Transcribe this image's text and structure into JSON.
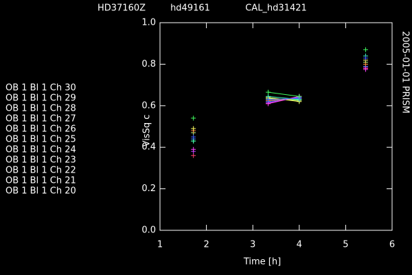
{
  "chart_data": {
    "type": "line",
    "titles": [
      "HD37160Z",
      "hd49161",
      "CAL_hd31421"
    ],
    "side_label": "2005-01-01 PRISM",
    "x_label": "Time [h]",
    "y_label": "VisSq c",
    "x": [
      1.72,
      3.33,
      4.0,
      5.43
    ],
    "xlim": [
      1,
      6
    ],
    "xticks": [
      1,
      2,
      3,
      4,
      5,
      6
    ],
    "ylim": [
      0,
      1
    ],
    "yticks": [
      {
        "value": 0,
        "label": "0.0"
      },
      0.2,
      0.4,
      0.6,
      0.8,
      {
        "value": 1,
        "label": "1.0"
      }
    ],
    "series": [
      {
        "name": "OB 1 Bl 1 Ch 30",
        "color": "#ff4070",
        "values": [
          0.36,
          0.61,
          0.645,
          0.78
        ]
      },
      {
        "name": "OB 1 Bl 1 Ch 29",
        "color": "#b040ff",
        "values": [
          0.38,
          0.615,
          0.64,
          0.785
        ]
      },
      {
        "name": "OB 1 Bl 1 Ch 28",
        "color": "#4080ff",
        "values": [
          0.44,
          0.62,
          0.64,
          0.79
        ]
      },
      {
        "name": "OB 1 Bl 1 Ch 27",
        "color": "#60ff40",
        "values": [
          0.43,
          0.63,
          0.63,
          0.8
        ]
      },
      {
        "name": "OB 1 Bl 1 Ch 26",
        "color": "#c0ff80",
        "values": [
          0.47,
          0.635,
          0.625,
          0.81
        ]
      },
      {
        "name": "OB 1 Bl 1 Ch 25",
        "color": "#ff8040",
        "values": [
          0.48,
          0.625,
          0.635,
          0.8
        ]
      },
      {
        "name": "OB 1 Bl 1 Ch 24",
        "color": "#ffff60",
        "values": [
          0.49,
          0.64,
          0.62,
          0.82
        ]
      },
      {
        "name": "OB 1 Bl 1 Ch 23",
        "color": "#ff40ff",
        "values": [
          0.39,
          0.61,
          0.645,
          0.775
        ]
      },
      {
        "name": "OB 1 Bl 1 Ch 22",
        "color": "#40ffc0",
        "values": [
          0.43,
          0.645,
          0.63,
          0.84
        ]
      },
      {
        "name": "OB 1 Bl 1 Ch 21",
        "color": "#4060ff",
        "values": [
          0.45,
          0.63,
          0.635,
          0.83
        ]
      },
      {
        "name": "OB 1 Bl 1 Ch 20",
        "color": "#40ff60",
        "values": [
          0.54,
          0.665,
          0.645,
          0.87
        ]
      }
    ]
  }
}
